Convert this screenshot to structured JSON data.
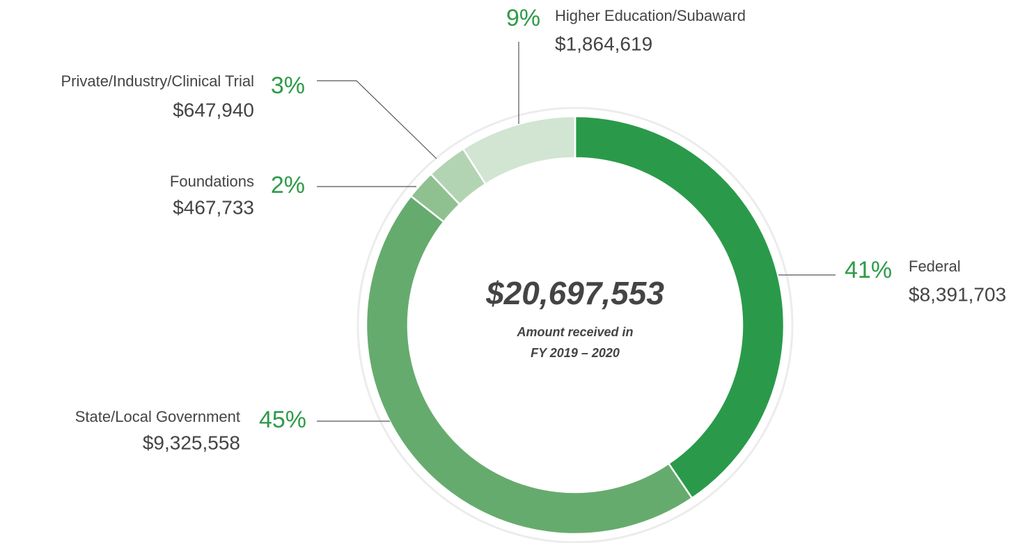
{
  "chart_data": {
    "type": "donut",
    "categories": [
      "Federal",
      "State/Local Government",
      "Foundations",
      "Private/Industry/Clinical Trial",
      "Higher Education/Subaward"
    ],
    "values": [
      8391703,
      9325558,
      467733,
      647940,
      1864619
    ],
    "value_labels": [
      "$8,391,703",
      "$9,325,558",
      "$467,733",
      "$647,940",
      "$1,864,619"
    ],
    "percent": [
      41,
      45,
      2,
      3,
      9
    ],
    "percent_labels": [
      "41%",
      "45%",
      "2%",
      "3%",
      "9%"
    ],
    "colors": [
      "#2a9a4a",
      "#66ab6e",
      "#8fc190",
      "#b3d4b3",
      "#d1e5d2"
    ],
    "total": 20697553,
    "total_label": "$20,697,553",
    "center_text": [
      "Amount received in",
      "FY 2019 – 2020"
    ]
  }
}
